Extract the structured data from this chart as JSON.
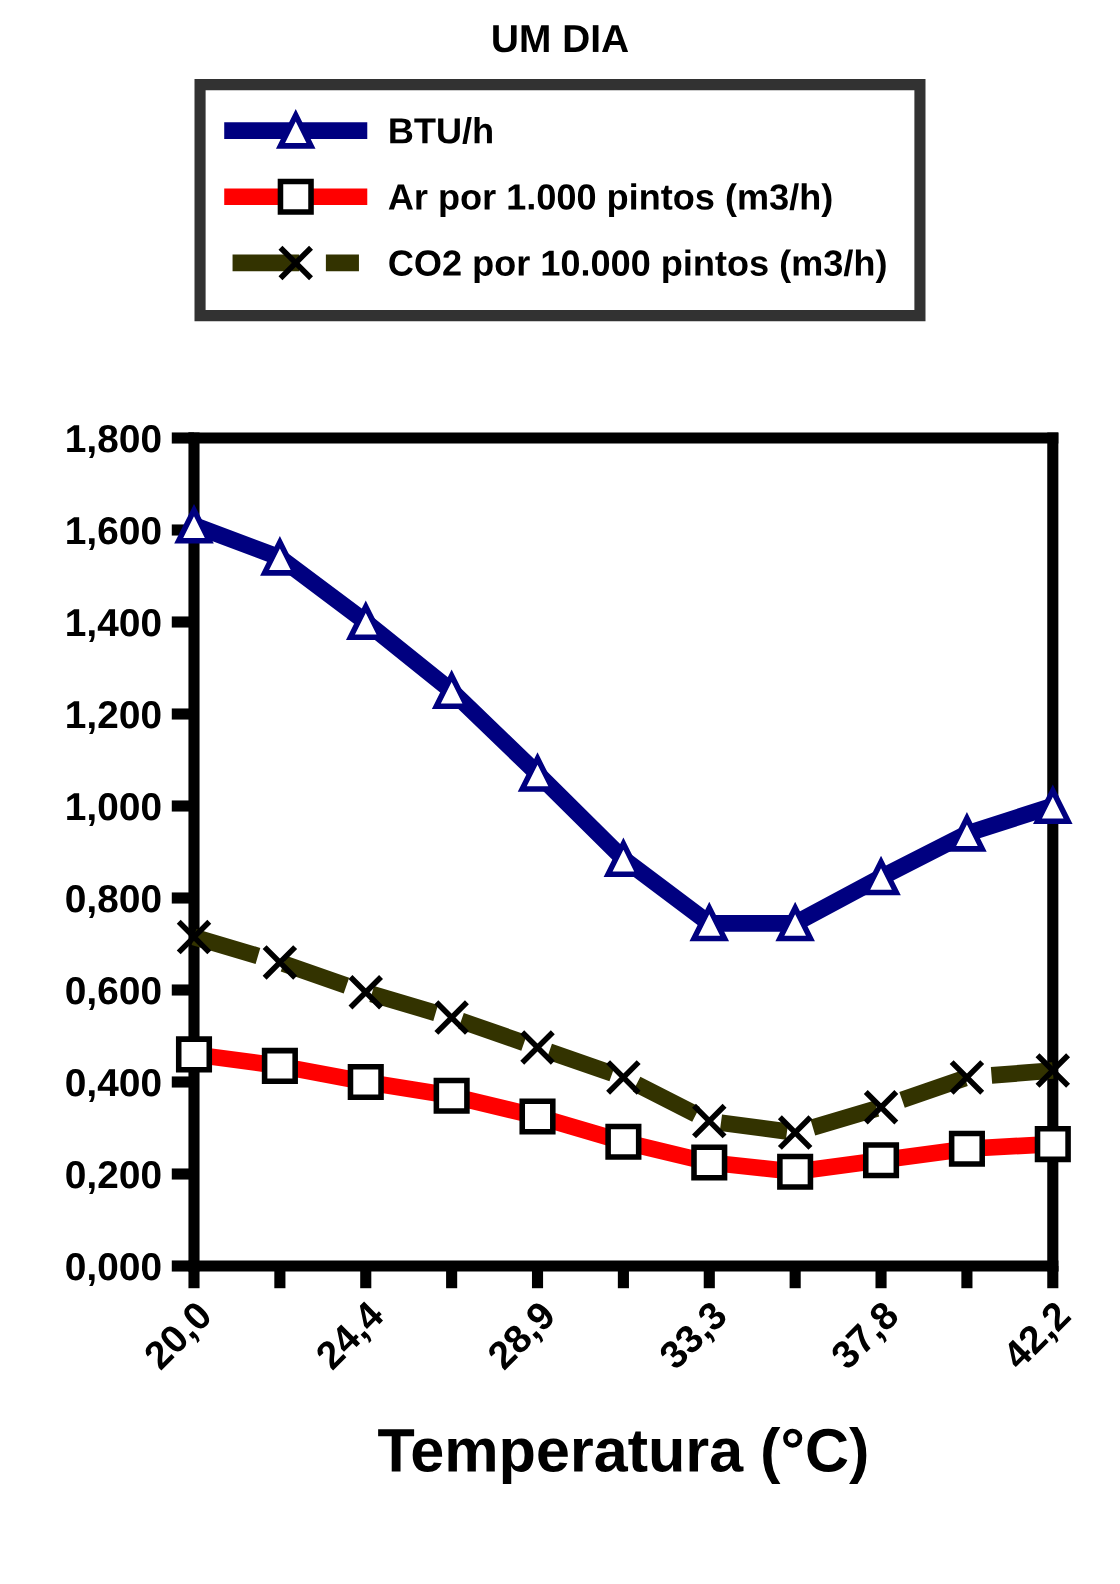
{
  "chart_data": {
    "type": "line",
    "title": "UM DIA",
    "xlabel": "Temperatura (°C)",
    "categories": [
      "20,0",
      null,
      "24,4",
      null,
      "28,9",
      null,
      "33,3",
      null,
      "37,8",
      null,
      "42,2"
    ],
    "series": [
      {
        "name": "BTU/h",
        "color": "#000080",
        "marker": "triangle",
        "line_style": "solid",
        "values": [
          1.61,
          1.54,
          1.4,
          1.25,
          1.07,
          0.885,
          0.745,
          0.745,
          0.845,
          0.94,
          1.0
        ]
      },
      {
        "name": "Ar por 1.000 pintos (m3/h)",
        "color": "#ff0000",
        "marker": "square",
        "line_style": "solid",
        "values": [
          0.46,
          0.435,
          0.4,
          0.37,
          0.325,
          0.27,
          0.225,
          0.205,
          0.23,
          0.255,
          0.265
        ]
      },
      {
        "name": "CO2 por 10.000 pintos (m3/h)",
        "color": "#333300",
        "marker": "cross",
        "line_style": "dashed",
        "values": [
          0.715,
          0.66,
          0.595,
          0.54,
          0.475,
          0.41,
          0.315,
          0.29,
          0.345,
          0.41,
          0.425
        ]
      }
    ],
    "ylim": [
      0,
      1.8
    ],
    "yticks": [
      {
        "value": 0,
        "label": "0,000"
      },
      {
        "value": 0.2,
        "label": "0,200"
      },
      {
        "value": 0.4,
        "label": "0,400"
      },
      {
        "value": 0.6,
        "label": "0,600"
      },
      {
        "value": 0.8,
        "label": "0,800"
      },
      {
        "value": 1.0,
        "label": "1,000"
      },
      {
        "value": 1.2,
        "label": "1,200"
      },
      {
        "value": 1.4,
        "label": "1,400"
      },
      {
        "value": 1.6,
        "label": "1,600"
      },
      {
        "value": 1.8,
        "label": "1,800"
      }
    ],
    "grid": false,
    "legend": "top"
  }
}
